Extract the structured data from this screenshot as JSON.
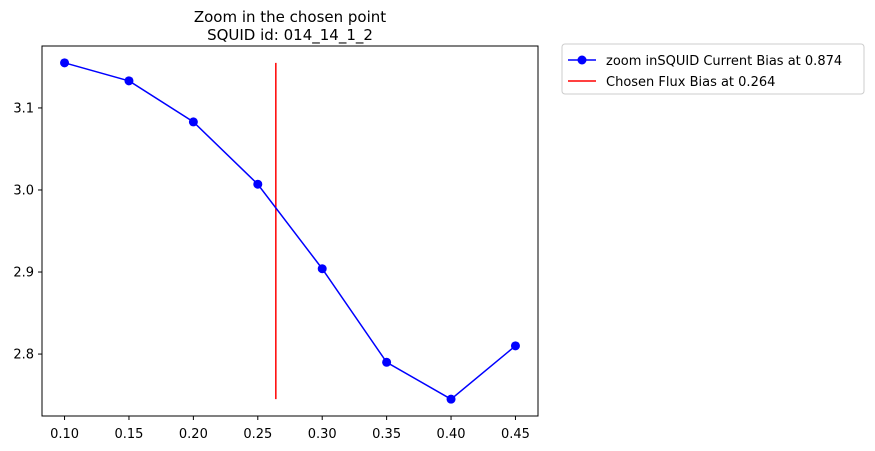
{
  "chart_data": {
    "type": "line",
    "title": [
      "Zoom in the chosen point",
      "SQUID id: 014_14_1_2"
    ],
    "xlim": [
      0.0825,
      0.4675
    ],
    "ylim": [
      2.7245,
      3.1755
    ],
    "x_ticks": [
      "0.10",
      "0.15",
      "0.20",
      "0.25",
      "0.30",
      "0.35",
      "0.40",
      "0.45"
    ],
    "y_ticks": [
      "2.8",
      "2.9",
      "3.0",
      "3.1"
    ],
    "series": [
      {
        "name": "zoom inSQUID Current Bias at 0.874",
        "color": "#0000ff",
        "marker": "circle",
        "x": [
          0.1,
          0.15,
          0.2,
          0.25,
          0.3,
          0.35,
          0.4,
          0.45
        ],
        "y": [
          3.155,
          3.133,
          3.083,
          3.007,
          2.904,
          2.79,
          2.745,
          2.81
        ]
      }
    ],
    "vlines": [
      {
        "name": "Chosen Flux Bias at 0.264",
        "color": "#ff0000",
        "x": 0.264,
        "y_range": [
          2.745,
          3.155
        ]
      }
    ],
    "grid": false,
    "legend_placement": "outside top-right"
  }
}
